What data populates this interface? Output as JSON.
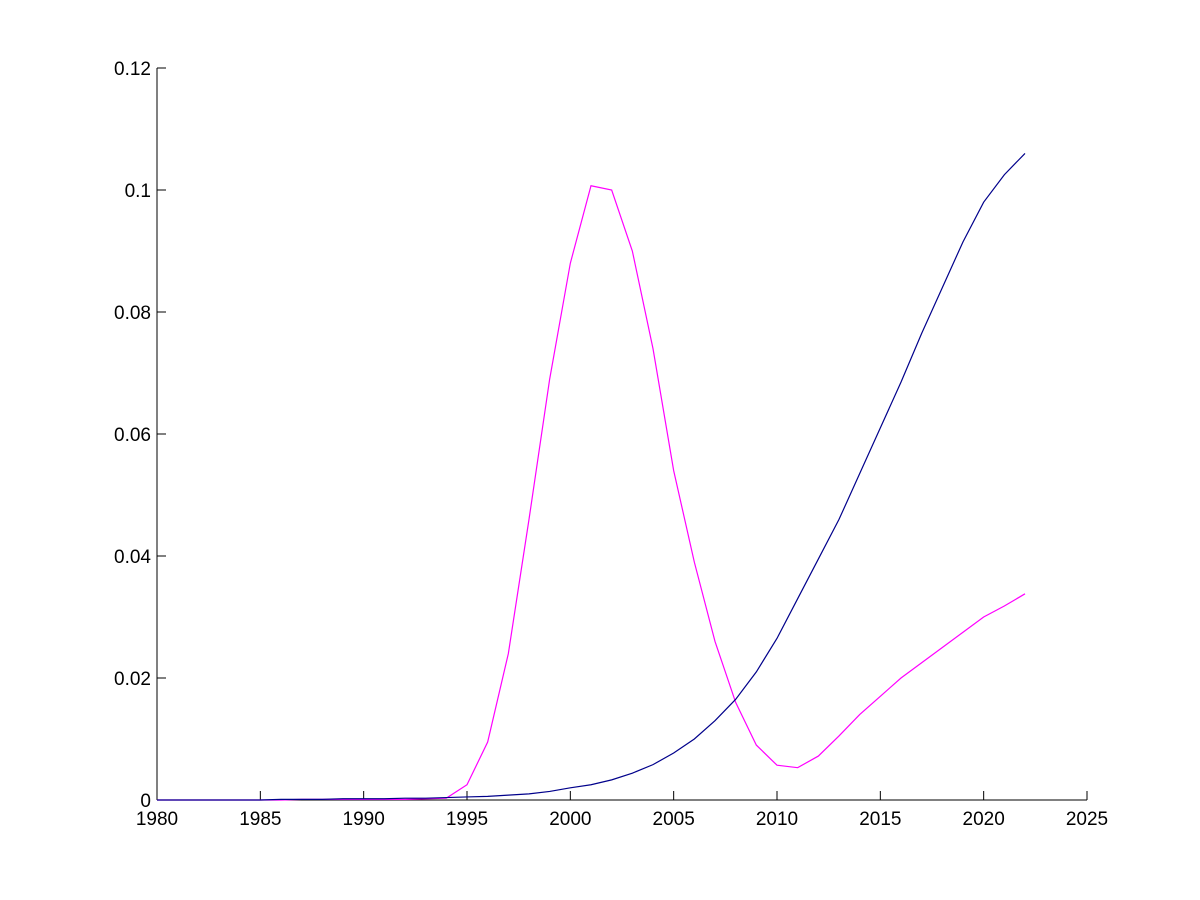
{
  "chart_data": {
    "type": "line",
    "x": [
      1980,
      1981,
      1982,
      1983,
      1984,
      1985,
      1986,
      1987,
      1988,
      1989,
      1990,
      1991,
      1992,
      1993,
      1994,
      1995,
      1996,
      1997,
      1998,
      1999,
      2000,
      2001,
      2002,
      2003,
      2004,
      2005,
      2006,
      2007,
      2008,
      2009,
      2010,
      2011,
      2012,
      2013,
      2014,
      2015,
      2016,
      2017,
      2018,
      2019,
      2020,
      2021,
      2022
    ],
    "series": [
      {
        "color": "#ff00ff",
        "values": [
          0,
          0,
          0,
          0,
          0,
          0,
          0,
          0.0001,
          0.0001,
          0.0001,
          0.0001,
          0.0001,
          0.0001,
          0.0002,
          0.0003,
          0.0025,
          0.0095,
          0.024,
          0.046,
          0.069,
          0.088,
          0.1007,
          0.1,
          0.09,
          0.074,
          0.054,
          0.039,
          0.026,
          0.016,
          0.009,
          0.0057,
          0.0053,
          0.0072,
          0.0105,
          0.014,
          0.017,
          0.02,
          0.0225,
          0.025,
          0.0275,
          0.03,
          0.0318,
          0.0338
        ]
      },
      {
        "color": "#00008b",
        "values": [
          0,
          0,
          0,
          0,
          0,
          0,
          0.0001,
          0.0001,
          0.0001,
          0.0002,
          0.0002,
          0.0002,
          0.0003,
          0.0003,
          0.0004,
          0.0005,
          0.0006,
          0.0008,
          0.001,
          0.0014,
          0.002,
          0.0025,
          0.0033,
          0.0044,
          0.0058,
          0.0077,
          0.01,
          0.013,
          0.0165,
          0.021,
          0.0265,
          0.033,
          0.0395,
          0.046,
          0.0535,
          0.061,
          0.0685,
          0.0765,
          0.084,
          0.0915,
          0.098,
          0.1025,
          0.106
        ]
      }
    ],
    "xlim": [
      1980,
      2025
    ],
    "xticks": [
      1980,
      1985,
      1990,
      1995,
      2000,
      2005,
      2010,
      2015,
      2020,
      2025
    ],
    "ylim": [
      0,
      0.12
    ],
    "yticks": [
      0,
      0.02,
      0.04,
      0.06,
      0.08,
      0.1,
      0.12
    ]
  }
}
